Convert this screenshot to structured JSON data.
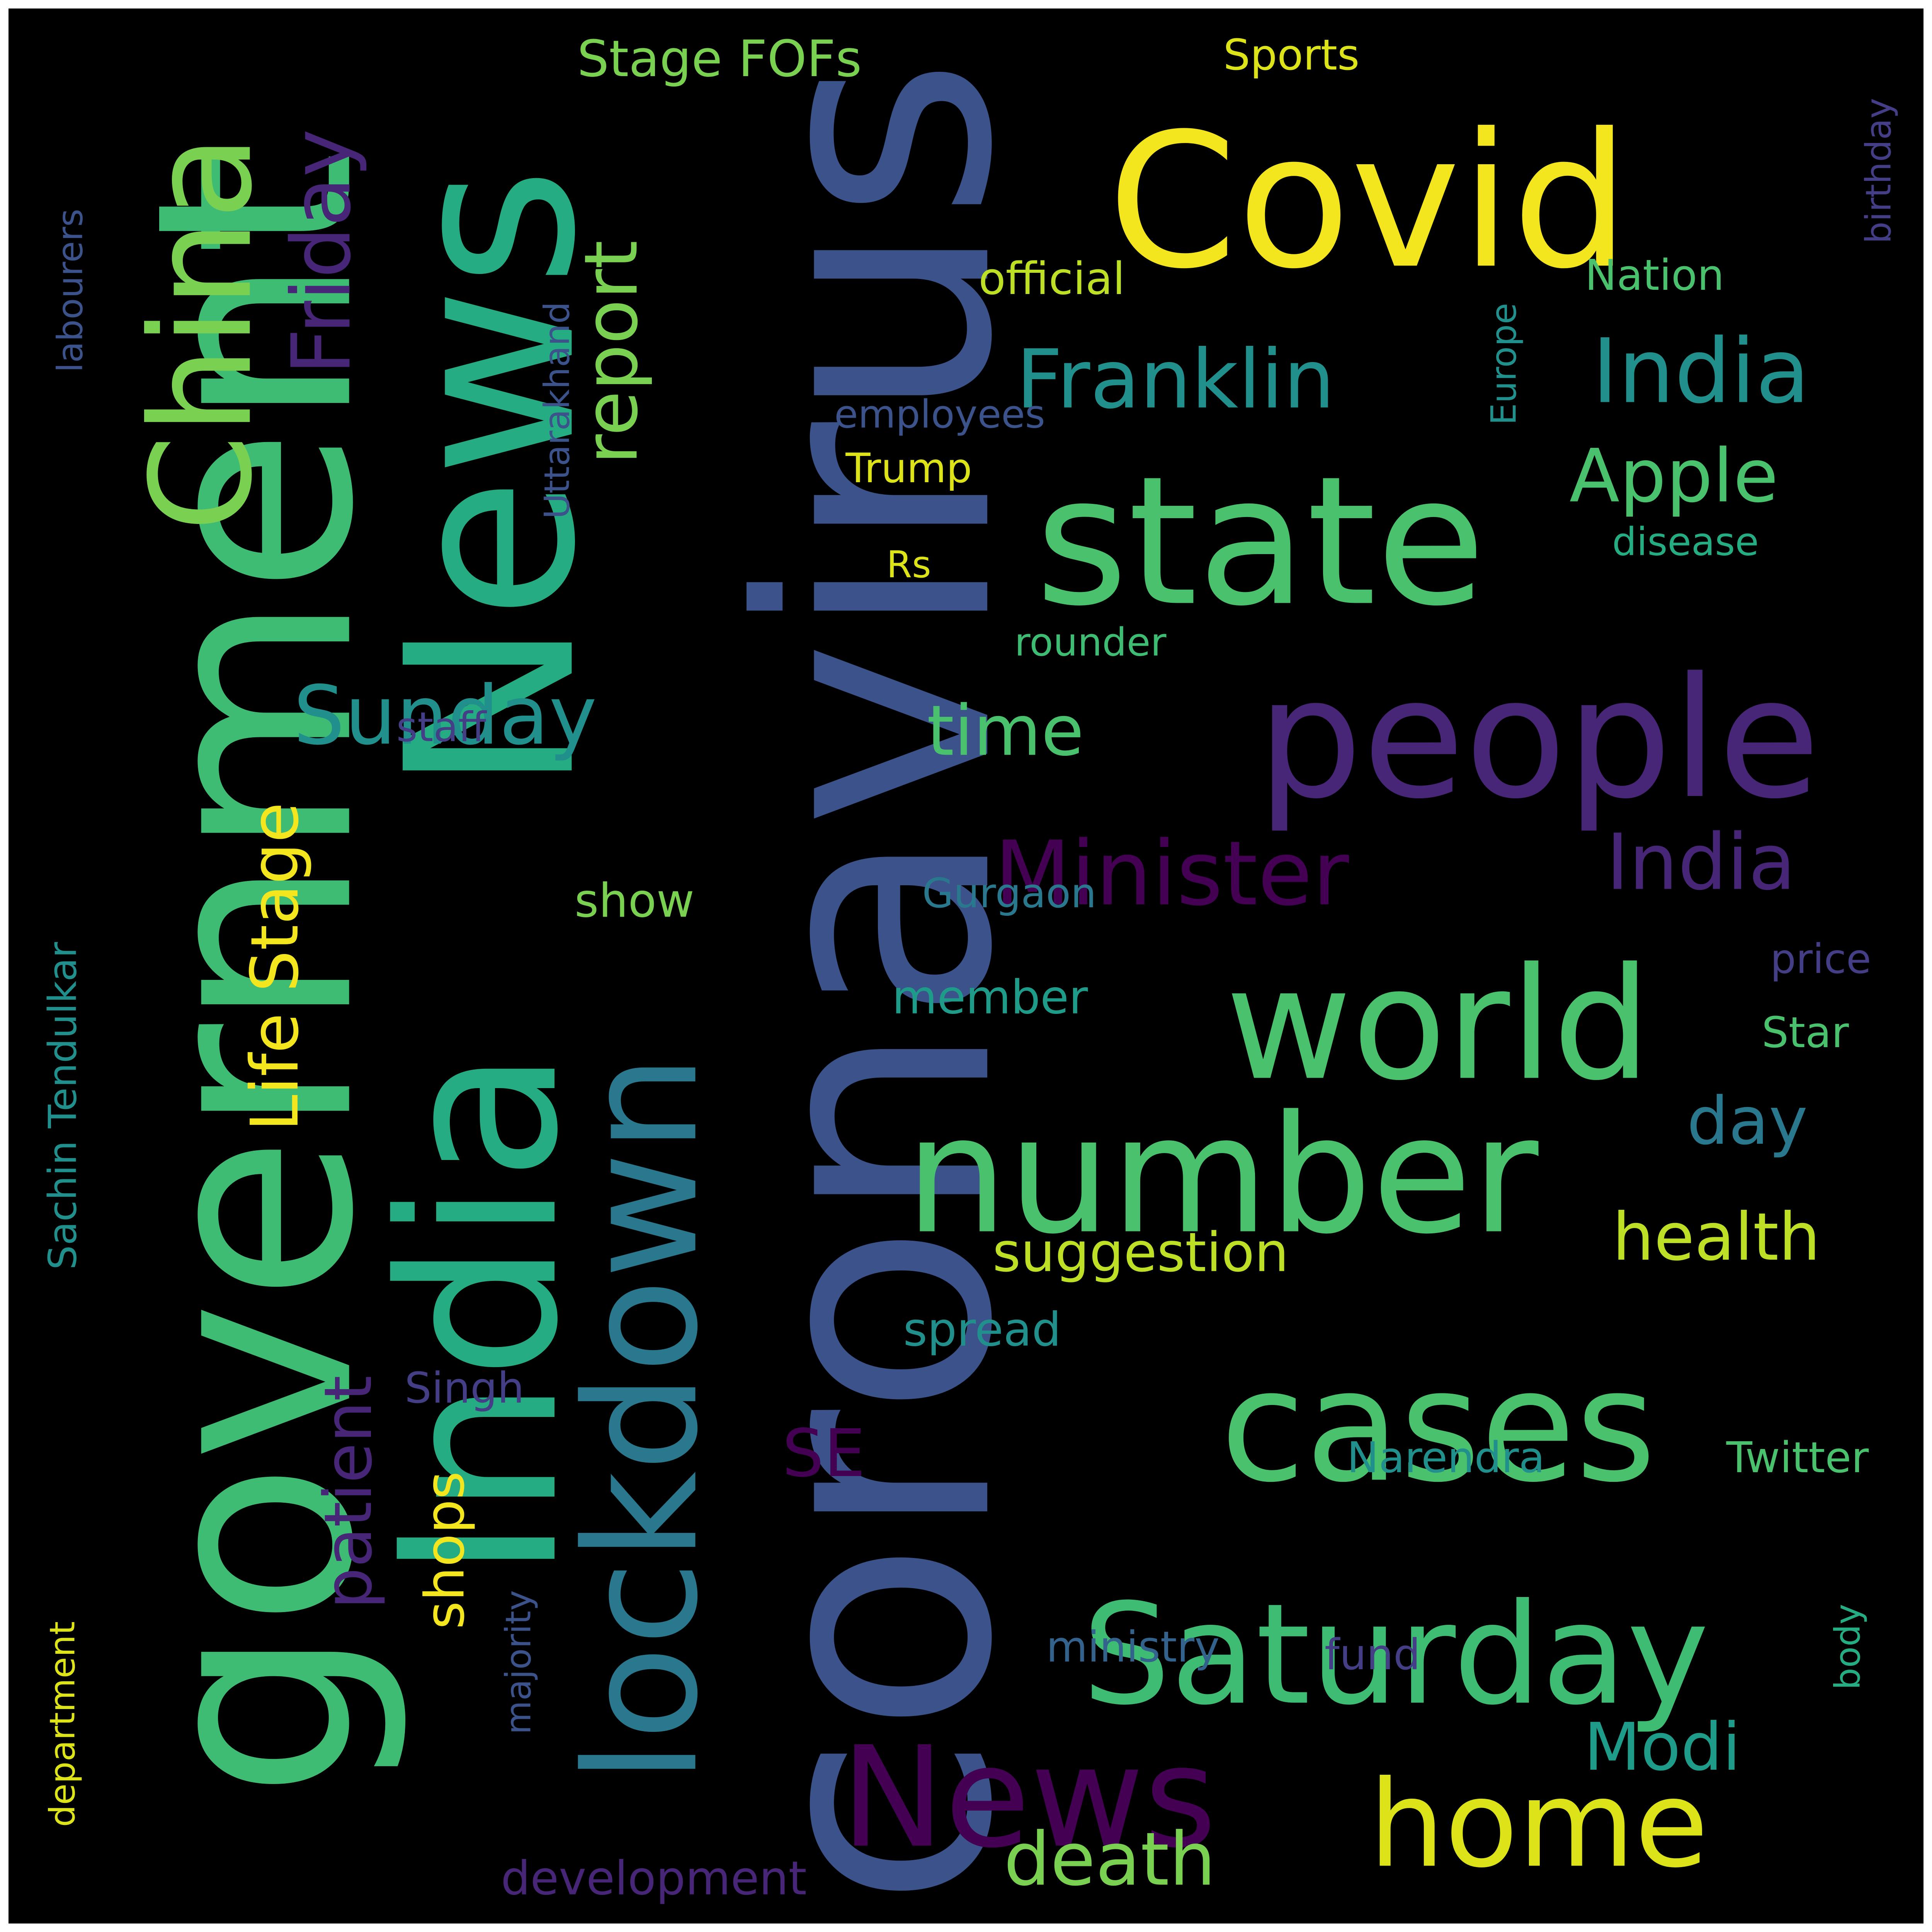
{
  "background": "#000000",
  "frame_border": "#ffffff",
  "palette": {
    "yellow": "#F4E61E",
    "yellow_green": "#DCE319",
    "lime": "#BDDF26",
    "light_green": "#7AD151",
    "green": "#4AC16D",
    "sea_green": "#3FBC73",
    "teal_green": "#25AC82",
    "teal": "#1E9C89",
    "cyan_blue": "#21908D",
    "steel_blue": "#2A788E",
    "blue": "#33638D",
    "slate_blue": "#3B528B",
    "indigo": "#433E85",
    "purple": "#482677",
    "dark_purple": "#440154"
  },
  "words": [
    {
      "text": "coronavirus",
      "color": "#3B528B"
    },
    {
      "text": "government",
      "color": "#3FBC73"
    },
    {
      "text": "News",
      "color": "#25AC82"
    },
    {
      "text": "Covid",
      "color": "#F4E61E"
    },
    {
      "text": "India",
      "color": "#25AC82"
    },
    {
      "text": "China",
      "color": "#7AD151"
    },
    {
      "text": "state",
      "color": "#4AC16D"
    },
    {
      "text": "people",
      "color": "#482677"
    },
    {
      "text": "world",
      "color": "#4AC16D"
    },
    {
      "text": "number",
      "color": "#4AC16D"
    },
    {
      "text": "cases",
      "color": "#4AC16D"
    },
    {
      "text": "Saturday",
      "color": "#3FBC73"
    },
    {
      "text": "News",
      "color": "#440154"
    },
    {
      "text": "home",
      "color": "#DCE319"
    },
    {
      "text": "lockdown",
      "color": "#2A788E"
    },
    {
      "text": "Franklin",
      "color": "#21908D"
    },
    {
      "text": "India",
      "color": "#21908D"
    },
    {
      "text": "Minister",
      "color": "#440154"
    },
    {
      "text": "India",
      "color": "#482677"
    },
    {
      "text": "Friday",
      "color": "#482677"
    },
    {
      "text": "report",
      "color": "#7AD151"
    },
    {
      "text": "Sunday",
      "color": "#21908D"
    },
    {
      "text": "Apple",
      "color": "#4AC16D"
    },
    {
      "text": "time",
      "color": "#4AC16D"
    },
    {
      "text": "Life Stage",
      "color": "#F4E61E"
    },
    {
      "text": "patient",
      "color": "#482677"
    },
    {
      "text": "Sachin Tendulkar",
      "color": "#21908D"
    },
    {
      "text": "day",
      "color": "#2A788E"
    },
    {
      "text": "health",
      "color": "#BDDF26"
    },
    {
      "text": "suggestion",
      "color": "#BDDF26"
    },
    {
      "text": "death",
      "color": "#7AD151"
    },
    {
      "text": "Modi",
      "color": "#1E9C89"
    },
    {
      "text": "shops",
      "color": "#F4E61E"
    },
    {
      "text": "SE",
      "color": "#440154"
    },
    {
      "text": "Stage FOFs",
      "color": "#7AD151"
    },
    {
      "text": "Sports",
      "color": "#DCE319"
    },
    {
      "text": "official",
      "color": "#BDDF26"
    },
    {
      "text": "Nation",
      "color": "#4AC16D"
    },
    {
      "text": "Uttarakhand",
      "color": "#3B528B"
    },
    {
      "text": "employees",
      "color": "#3B528B"
    },
    {
      "text": "Trump",
      "color": "#DCE319"
    },
    {
      "text": "Europe",
      "color": "#21908D"
    },
    {
      "text": "disease",
      "color": "#25AC82"
    },
    {
      "text": "Rs",
      "color": "#DCE319"
    },
    {
      "text": "rounder",
      "color": "#3FBC73"
    },
    {
      "text": "birthday",
      "color": "#433E85"
    },
    {
      "text": "labourers",
      "color": "#3B528B"
    },
    {
      "text": "staff",
      "color": "#433E85"
    },
    {
      "text": "show",
      "color": "#7AD151"
    },
    {
      "text": "Gurgaon",
      "color": "#2A788E"
    },
    {
      "text": "price",
      "color": "#433E85"
    },
    {
      "text": "member",
      "color": "#1E9C89"
    },
    {
      "text": "Star",
      "color": "#4AC16D"
    },
    {
      "text": "spread",
      "color": "#21908D"
    },
    {
      "text": "Singh",
      "color": "#433E85"
    },
    {
      "text": "Narendra",
      "color": "#21908D"
    },
    {
      "text": "Twitter",
      "color": "#4AC16D"
    },
    {
      "text": "department",
      "color": "#DCE319"
    },
    {
      "text": "majority",
      "color": "#3B528B"
    },
    {
      "text": "ministry",
      "color": "#33638D"
    },
    {
      "text": "fund",
      "color": "#433E85"
    },
    {
      "text": "body",
      "color": "#25AC82"
    },
    {
      "text": "development",
      "color": "#482677"
    }
  ]
}
